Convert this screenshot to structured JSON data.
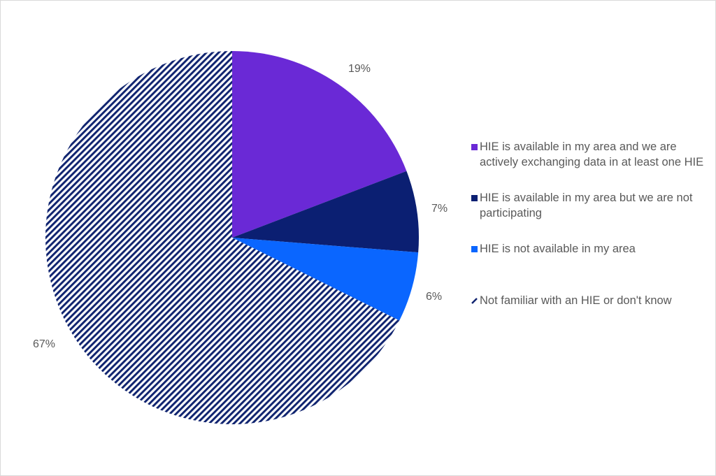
{
  "chart_data": {
    "type": "pie",
    "title": "",
    "start_angle_deg": 0,
    "direction": "clockwise",
    "legend_position": "right",
    "categories": [
      "HIE is available in my area and we are actively exchanging data in at least one HIE",
      "HIE is available in my area but we are not participating",
      "HIE is not available in my area",
      "Not familiar with an HIE or don't know"
    ],
    "values": [
      19,
      7,
      6,
      67
    ],
    "labels": [
      "19%",
      "7%",
      "6%",
      "67%"
    ],
    "colors": [
      "#6a29d6",
      "#0b1f72",
      "#0a66ff",
      "#102470"
    ],
    "patterns": [
      "solid",
      "solid",
      "solid",
      "diagonal-stripes"
    ]
  },
  "legend": {
    "items": [
      {
        "label": "HIE is available in my area and we are actively exchanging data in at least one HIE",
        "color": "#6a29d6"
      },
      {
        "label": "HIE is available in my area but we are not participating",
        "color": "#0b1f72"
      },
      {
        "label": "HIE is not available in my area",
        "color": "#0a66ff"
      },
      {
        "label": "Not familiar with an HIE or don't know",
        "color": "#102470"
      }
    ]
  }
}
